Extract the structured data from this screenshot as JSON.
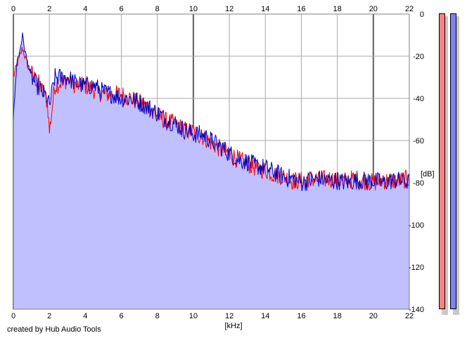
{
  "chart_data": {
    "type": "area",
    "title": "",
    "xlabel": "[kHz]",
    "ylabel": "[dB]",
    "xlim": [
      0,
      22
    ],
    "ylim": [
      -140,
      0
    ],
    "x_ticks": [
      "0",
      "2",
      "4",
      "6",
      "8",
      "10",
      "12",
      "14",
      "16",
      "18",
      "20",
      "22"
    ],
    "y_ticks": [
      "0",
      "-20",
      "-40",
      "-60",
      "-80",
      "-100",
      "-120",
      "-140"
    ],
    "grid": true,
    "area_fill": "#c0c0ff",
    "series": [
      {
        "color": "#ff0000",
        "x": [
          0,
          0.2,
          0.3,
          0.5,
          0.7,
          1.0,
          1.5,
          1.9,
          2.0,
          2.3,
          3.0,
          3.5,
          4.0,
          4.5,
          5.0,
          5.5,
          6.0,
          6.5,
          7.0,
          7.5,
          8.0,
          8.5,
          9.0,
          9.5,
          10.0,
          10.5,
          11.0,
          11.5,
          12.0,
          12.5,
          13.0,
          13.5,
          14.0,
          14.5,
          15.0,
          15.5,
          16.0,
          16.5,
          17.0,
          17.5,
          18.0,
          18.5,
          19.0,
          19.5,
          20.0,
          20.5,
          21.0,
          21.5,
          22.0
        ],
        "y": [
          -30,
          -24,
          -22,
          -16,
          -22,
          -28,
          -34,
          -42,
          -56,
          -34,
          -31,
          -34,
          -34,
          -36,
          -38,
          -38,
          -38,
          -40,
          -42,
          -44,
          -48,
          -51,
          -52,
          -55,
          -56,
          -58,
          -61,
          -64,
          -66,
          -69,
          -71,
          -73,
          -74,
          -76,
          -77,
          -79,
          -79,
          -78,
          -79,
          -78,
          -79,
          -79,
          -78,
          -79,
          -80,
          -79,
          -79,
          -79,
          -78
        ]
      },
      {
        "color": "#0000c0",
        "x": [
          0,
          0.2,
          0.3,
          0.5,
          0.7,
          1.0,
          1.5,
          1.9,
          2.0,
          2.3,
          3.0,
          3.5,
          4.0,
          4.5,
          5.0,
          5.5,
          6.0,
          6.5,
          7.0,
          7.5,
          8.0,
          8.5,
          9.0,
          9.5,
          10.0,
          10.5,
          11.0,
          11.5,
          12.0,
          12.5,
          13.0,
          13.5,
          14.0,
          14.5,
          15.0,
          15.5,
          16.0,
          16.5,
          17.0,
          17.5,
          18.0,
          18.5,
          19.0,
          19.5,
          20.0,
          20.5,
          21.0,
          21.5,
          22.0
        ],
        "y": [
          -50,
          -22,
          -20,
          -10,
          -20,
          -30,
          -36,
          -40,
          -44,
          -30,
          -30,
          -33,
          -34,
          -34,
          -37,
          -38,
          -40,
          -40,
          -42,
          -44,
          -47,
          -50,
          -52,
          -55,
          -57,
          -57,
          -60,
          -63,
          -66,
          -69,
          -70,
          -72,
          -73,
          -75,
          -77,
          -78,
          -80,
          -79,
          -78,
          -79,
          -79,
          -80,
          -79,
          -79,
          -79,
          -80,
          -79,
          -79,
          -80
        ]
      }
    ]
  },
  "x_axis_label": "[kHz]",
  "y_axis_label": "[dB]",
  "credit": "created by Hub Audio Tools",
  "meters": [
    {
      "color": "#ff8080",
      "level": 1.0
    },
    {
      "color": "#8080ff",
      "level": 1.0
    }
  ]
}
